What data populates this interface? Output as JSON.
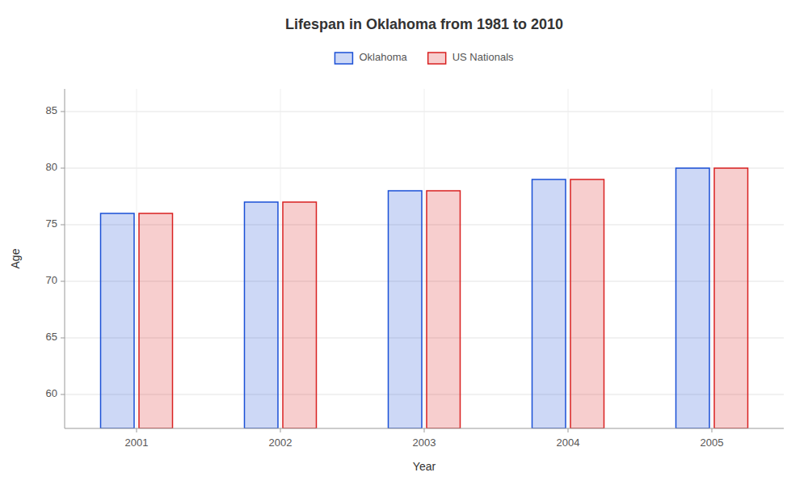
{
  "chart_data": {
    "type": "bar",
    "title": "Lifespan in Oklahoma from 1981 to 2010",
    "x_label": "Year",
    "y_label": "Age",
    "categories": [
      "2001",
      "2002",
      "2003",
      "2004",
      "2005"
    ],
    "series": [
      {
        "name": "Oklahoma",
        "color": "#1a4fd6",
        "values": [
          76,
          77,
          78,
          79,
          80
        ]
      },
      {
        "name": "US Nationals",
        "color": "#d92020",
        "values": [
          76,
          77,
          78,
          79,
          80
        ]
      }
    ],
    "ylim": [
      57,
      87
    ],
    "yticks": [
      60,
      65,
      70,
      75,
      80,
      85
    ],
    "grid": true,
    "legend": "top"
  }
}
